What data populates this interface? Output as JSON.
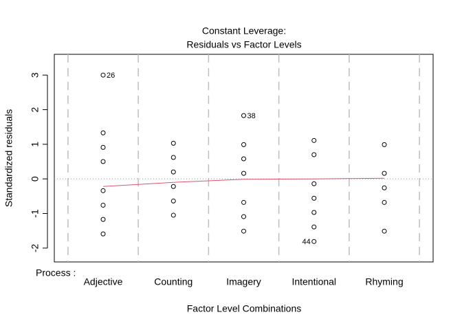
{
  "chart_data": {
    "type": "scatter",
    "title": [
      "Constant Leverage:",
      "Residuals vs Factor Levels"
    ],
    "xlabel": "Factor Level Combinations",
    "ylabel": "Standardized residuals",
    "factor_label": "Process :",
    "categories": [
      "Adjective",
      "Counting",
      "Imagery",
      "Intentional",
      "Rhyming"
    ],
    "values": [
      [
        3.0,
        1.33,
        0.91,
        0.5,
        -0.34,
        -0.76,
        -1.17,
        -1.59
      ],
      [
        1.03,
        0.62,
        0.2,
        -0.22,
        -0.64,
        -1.05
      ],
      [
        1.83,
        0.99,
        0.58,
        0.16,
        -0.68,
        -1.09,
        -1.51
      ],
      [
        1.11,
        0.7,
        -0.14,
        -0.56,
        -0.97,
        -1.39,
        -1.81
      ],
      [
        0.99,
        0.16,
        -0.26,
        -0.68,
        -1.51
      ]
    ],
    "point_labels": [
      [
        "26",
        null,
        null,
        null,
        null,
        null,
        null,
        null
      ],
      [
        null,
        null,
        null,
        null,
        null,
        null
      ],
      [
        "38",
        null,
        null,
        null,
        null,
        null,
        null
      ],
      [
        null,
        null,
        null,
        null,
        null,
        null,
        "44"
      ],
      [
        null,
        null,
        null,
        null,
        null
      ]
    ],
    "smooth": {
      "color": "#DF536B",
      "values": [
        -0.22,
        -0.1,
        -0.01,
        0.0,
        0.02
      ]
    },
    "hline": 0,
    "ylim": [
      -2.4,
      3.6
    ],
    "yticks": [
      -2,
      -1,
      0,
      1,
      2,
      3
    ]
  }
}
